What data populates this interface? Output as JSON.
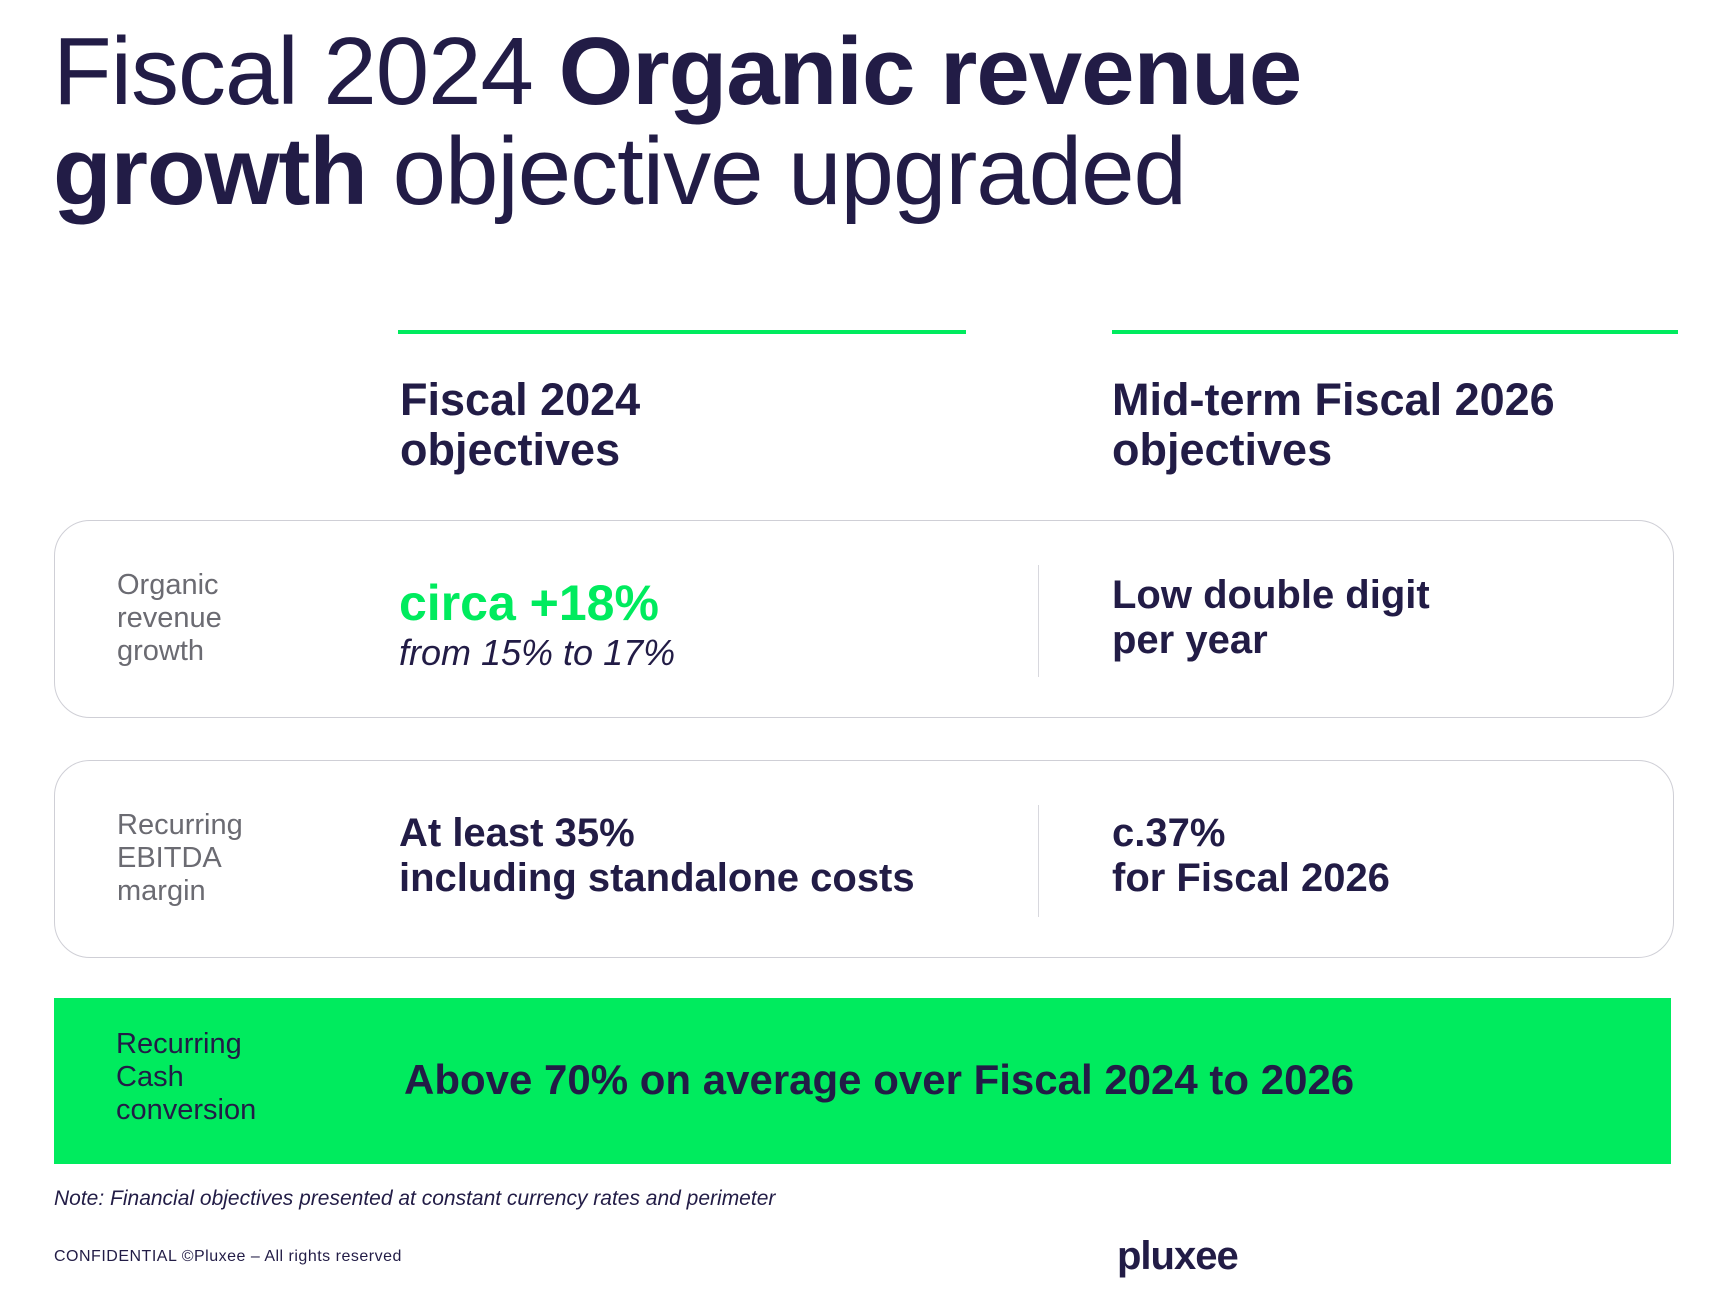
{
  "title": {
    "part1": "Fiscal 2024 ",
    "bold1": "Organic revenue",
    "bold2": "growth",
    "part2": " objective upgraded"
  },
  "columns": [
    {
      "line1": "Fiscal 2024",
      "line2": "objectives"
    },
    {
      "line1": "Mid-term Fiscal 2026",
      "line2": "objectives"
    }
  ],
  "rows": [
    {
      "label": [
        "Organic",
        "revenue",
        "growth"
      ],
      "fy2024": {
        "highlight": "circa +18%",
        "sub": "from 15% to 17%"
      },
      "fy2026": [
        "Low double digit",
        "per year"
      ]
    },
    {
      "label": [
        "Recurring",
        "EBITDA",
        "margin"
      ],
      "fy2024": [
        "At least 35%",
        "including standalone costs"
      ],
      "fy2026": [
        "c.37%",
        "for Fiscal 2026"
      ]
    }
  ],
  "banner": {
    "label": [
      "Recurring",
      "Cash",
      "conversion"
    ],
    "text": "Above 70% on average over Fiscal 2024 to 2026"
  },
  "note": "Note: Financial objectives presented at constant currency rates and perimeter",
  "footer": "CONFIDENTIAL ©Pluxee – All rights reserved",
  "logo": "pluxee",
  "colors": {
    "navy": "#221c46",
    "green": "#00eb5e",
    "grey_label": "#6b6b72",
    "card_border": "#cfcfd6"
  }
}
